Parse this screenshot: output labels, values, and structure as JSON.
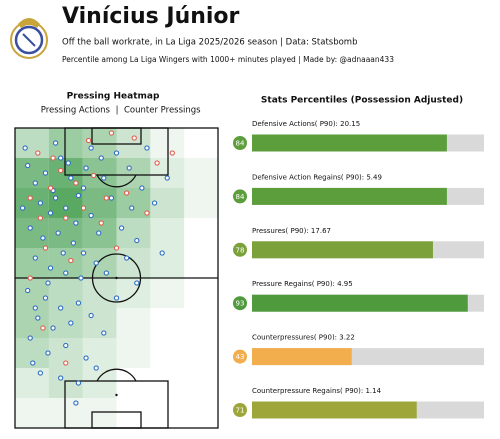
{
  "header": {
    "title": "Vinícius Júnior",
    "subtitle": "Off the ball workrate, in La Liga 2025/2026 season | Data: Statsbomb",
    "note": "Percentile among La Liga Wingers with 1000+ minutes played | Made by: @adnaaan433"
  },
  "chart_data": [
    {
      "type": "heatmap",
      "title": "Pressing Heatmap",
      "xlim": [
        0,
        80
      ],
      "ylim": [
        0,
        120
      ],
      "color": "#3c9a48",
      "cells": [
        [
          4,
          6,
          5,
          3,
          1,
          0
        ],
        [
          8,
          9,
          7,
          5,
          2,
          1
        ],
        [
          9,
          10,
          8,
          6,
          3,
          1
        ],
        [
          8,
          8,
          7,
          4,
          2,
          0
        ],
        [
          6,
          6,
          5,
          3,
          2,
          0
        ],
        [
          5,
          4,
          3,
          2,
          1,
          0
        ],
        [
          5,
          4,
          3,
          1,
          0,
          0
        ],
        [
          4,
          3,
          2,
          1,
          0,
          0
        ],
        [
          2,
          3,
          2,
          0,
          0,
          0
        ],
        [
          1,
          1,
          1,
          0,
          0,
          0
        ]
      ],
      "series": [
        {
          "name": "Pressing Actions",
          "color": "#2f6fc4",
          "x": [
            5,
            8,
            12,
            15,
            18,
            22,
            25,
            28,
            10,
            14,
            20,
            24,
            30,
            6,
            11,
            17,
            23,
            27,
            33,
            38,
            35,
            40,
            45,
            50,
            55,
            42,
            48,
            32,
            8,
            14,
            20,
            26,
            36,
            4,
            16,
            30,
            52,
            60,
            44,
            58,
            5,
            12,
            18,
            25,
            9,
            15,
            22,
            30,
            6,
            13,
            20,
            28,
            10,
            18,
            25,
            35,
            40,
            48,
            3,
            19,
            27,
            34,
            46,
            13,
            7,
            32,
            24,
            8,
            16,
            21
          ],
          "y": [
            105,
            98,
            102,
            95,
            108,
            100,
            93,
            104,
            90,
            86,
            88,
            82,
            85,
            80,
            76,
            78,
            74,
            70,
            78,
            92,
            100,
            110,
            104,
            96,
            90,
            80,
            75,
            66,
            68,
            64,
            62,
            60,
            62,
            112,
            114,
            112,
            112,
            100,
            68,
            70,
            55,
            52,
            48,
            50,
            44,
            40,
            42,
            45,
            36,
            30,
            33,
            28,
            22,
            20,
            18,
            38,
            52,
            58,
            88,
            70,
            96,
            108,
            88,
            58,
            26,
            24,
            10,
            48,
            92,
            106
          ]
        },
        {
          "name": "Counter Pressings",
          "color": "#e0604f",
          "x": [
            9,
            18,
            24,
            14,
            31,
            6,
            20,
            27,
            12,
            34,
            44,
            56,
            62,
            38,
            47,
            29,
            10,
            22,
            40,
            52,
            11,
            20,
            6,
            36,
            15
          ],
          "y": [
            110,
            103,
            98,
            96,
            101,
            92,
            84,
            88,
            72,
            82,
            94,
            106,
            110,
            118,
            116,
            115,
            84,
            67,
            72,
            86,
            40,
            26,
            60,
            92,
            108
          ]
        }
      ]
    },
    {
      "type": "percentile-bar",
      "title": "Stats Percentiles (Possession Adjusted)",
      "xlim": [
        0,
        100
      ],
      "categories": [
        "Defensive Actions( P90): 20.15",
        "Defensive Action Regains( P90): 5.49",
        "Pressures( P90): 17.67",
        "Pressure Regains( P90): 4.95",
        "Counterpressures( P90): 3.22",
        "Counterpressure Regains( P90): 1.14"
      ],
      "values": [
        84,
        84,
        78,
        93,
        43,
        71
      ],
      "colors": [
        "#5c9e3c",
        "#5c9e3c",
        "#7ba13a",
        "#4f9a3c",
        "#f2ad4c",
        "#9ea63a"
      ],
      "track_color": "#d9d9d9"
    }
  ]
}
